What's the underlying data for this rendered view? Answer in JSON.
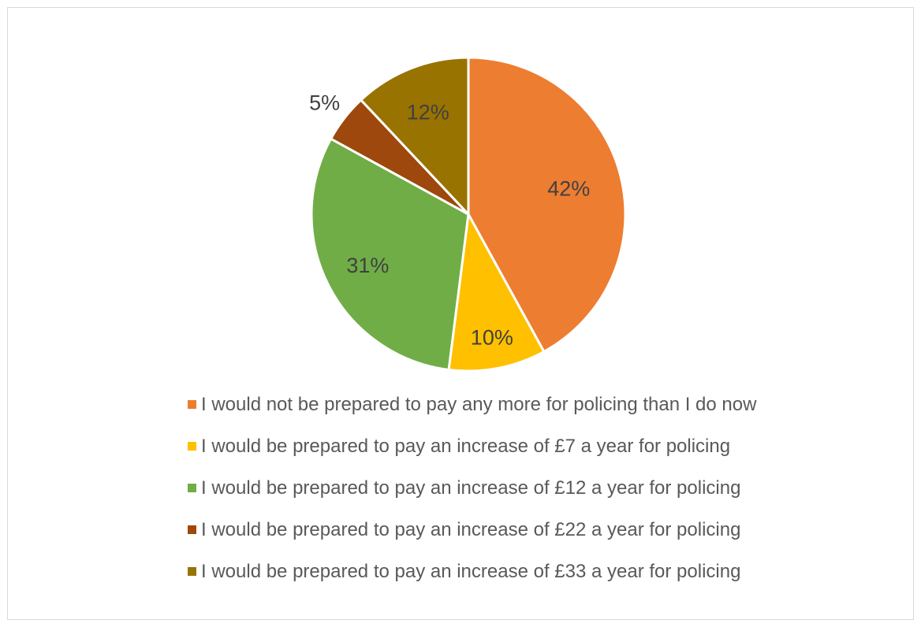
{
  "chart_data": {
    "type": "pie",
    "title": "",
    "legend_position": "bottom",
    "slices": [
      {
        "label": "I would not be prepared to pay any more for policing than I do now",
        "value": 42,
        "value_label": "42%",
        "color": "#ED7D31"
      },
      {
        "label": "I would be prepared to pay an increase of £7 a year for policing",
        "value": 10,
        "value_label": "10%",
        "color": "#FFC000"
      },
      {
        "label": "I would be prepared to pay an increase of £12 a year for policing",
        "value": 31,
        "value_label": "31%",
        "color": "#70AD47"
      },
      {
        "label": "I would be prepared to pay an increase of £22 a year for policing",
        "value": 5,
        "value_label": "5%",
        "color": "#9E480E"
      },
      {
        "label": "I would be prepared to pay an increase of £33 a year for policing",
        "value": 12,
        "value_label": "12%",
        "color": "#997300"
      }
    ]
  }
}
